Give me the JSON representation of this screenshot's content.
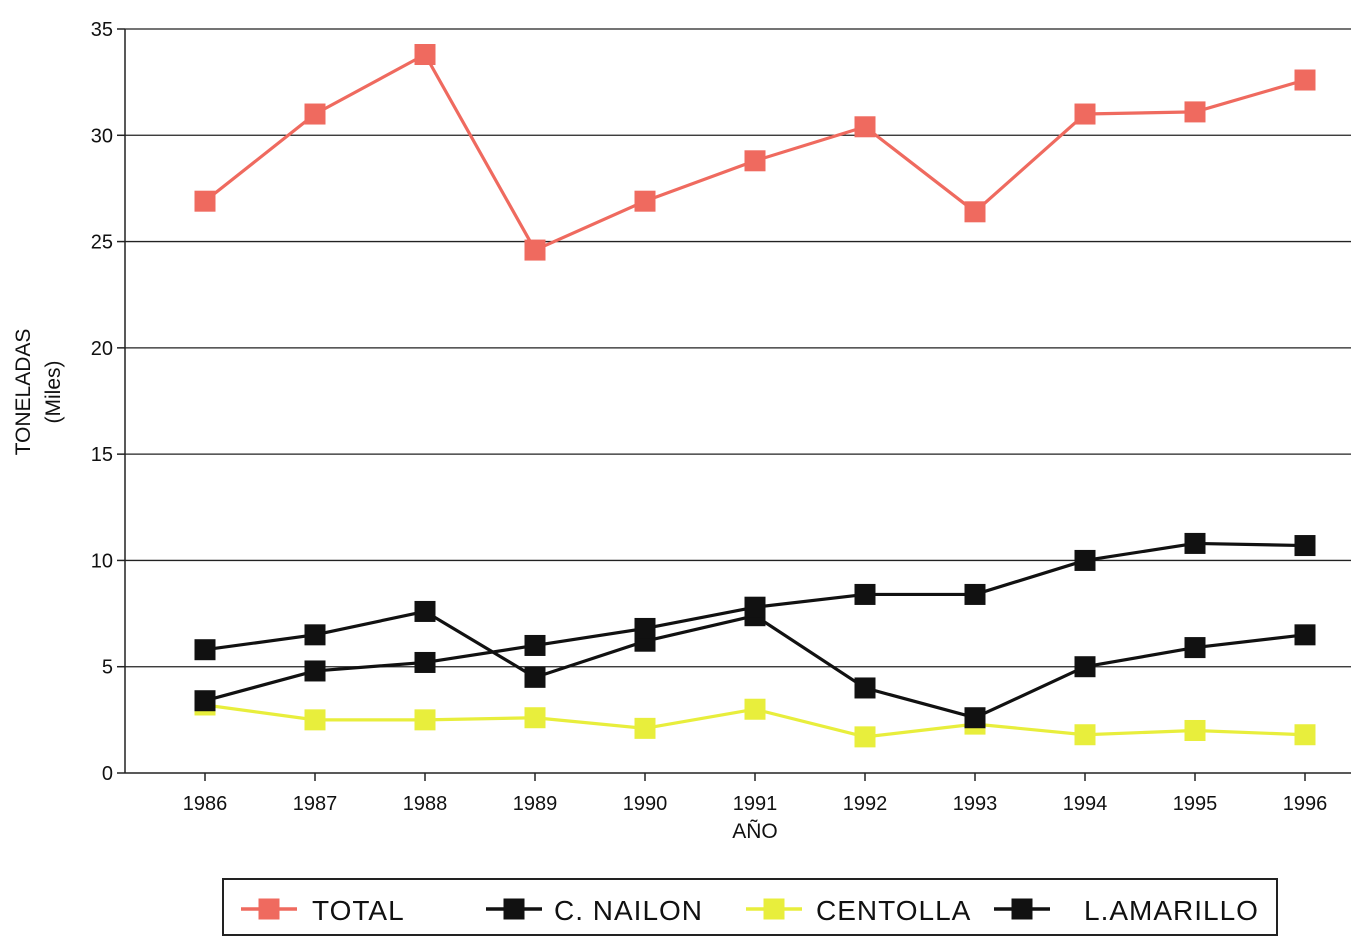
{
  "chart_data": {
    "type": "line",
    "xlabel": "AÑO",
    "ylabel": "TONELADAS",
    "ylabel_sub": "(Miles)",
    "x": [
      "1986",
      "1987",
      "1988",
      "1989",
      "1990",
      "1991",
      "1992",
      "1993",
      "1994",
      "1995",
      "1996"
    ],
    "ylim": [
      0,
      35
    ],
    "yticks": [
      0,
      5,
      10,
      15,
      20,
      25,
      30,
      35
    ],
    "grid": "horizontal",
    "legend_position": "bottom",
    "series": [
      {
        "name": "TOTAL",
        "color": "#ef6a5f",
        "values": [
          26.9,
          31.0,
          33.8,
          24.6,
          26.9,
          28.8,
          30.4,
          26.4,
          31.0,
          31.1,
          32.6
        ]
      },
      {
        "name": "C. NAILON",
        "color": "#111111",
        "values": [
          5.8,
          6.5,
          7.6,
          4.5,
          6.2,
          7.4,
          4.0,
          2.6,
          5.0,
          5.9,
          6.5
        ]
      },
      {
        "name": "CENTOLLA",
        "color": "#e8ee3c",
        "values": [
          3.2,
          2.5,
          2.5,
          2.6,
          2.1,
          3.0,
          1.7,
          2.3,
          1.8,
          2.0,
          1.8
        ]
      },
      {
        "name": "L.AMARILLO",
        "color": "#111111",
        "values": [
          3.4,
          4.8,
          5.2,
          6.0,
          6.8,
          7.8,
          8.4,
          8.4,
          10.0,
          10.8,
          10.7
        ]
      }
    ]
  }
}
